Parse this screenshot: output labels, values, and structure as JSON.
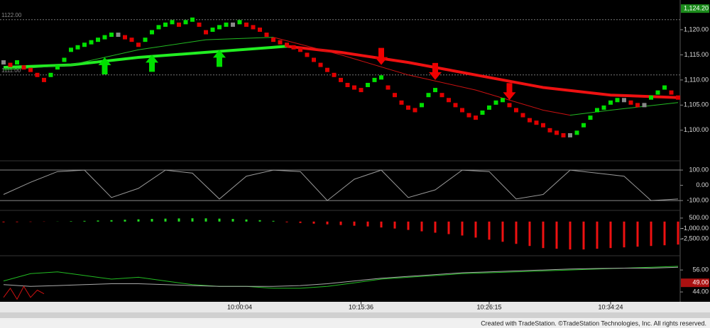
{
  "chart_data": {
    "type": "multi-panel",
    "xlim": [
      0,
      100
    ],
    "xticks": [
      {
        "value": 35,
        "label": "10:00:04"
      },
      {
        "value": 53,
        "label": "10:15:36"
      },
      {
        "value": 72,
        "label": "10:26:15"
      },
      {
        "value": 90,
        "label": "10:34:24"
      }
    ],
    "panels": [
      {
        "type": "renko",
        "ylim": [
          1094.2,
          1124.5
        ],
        "yticks": [
          {
            "value": 1100,
            "label": "1,100.00"
          },
          {
            "value": 1105,
            "label": "1,105.00"
          },
          {
            "value": 1110,
            "label": "1,110.00"
          },
          {
            "value": 1115,
            "label": "1,115.00"
          },
          {
            "value": 1120,
            "label": "1,120.00"
          }
        ],
        "ref_lines": [
          {
            "value": 1122,
            "label": "1122.00"
          },
          {
            "value": 1111,
            "label": "1111.00"
          }
        ],
        "value_boxes": [
          {
            "value": 1124.2,
            "label": "1,124.20",
            "color": "#1a8a1a"
          }
        ],
        "up_color": "#00e000",
        "down_color": "#e00000",
        "flat_color": "#888888",
        "x": [
          0,
          1,
          2,
          3,
          4,
          5,
          6,
          7,
          8,
          9,
          10,
          11,
          12,
          13,
          14,
          15,
          16,
          17,
          18,
          19,
          20,
          21,
          22,
          23,
          24,
          25,
          26,
          27,
          28,
          29,
          30,
          31,
          32,
          33,
          34,
          35,
          36,
          37,
          38,
          39,
          40,
          41,
          42,
          43,
          44,
          45,
          46,
          47,
          48,
          49,
          50,
          51,
          52,
          53,
          54,
          55,
          56,
          57,
          58,
          59,
          60,
          61,
          62,
          63,
          64,
          65,
          66,
          67,
          68,
          69,
          70,
          71,
          72,
          73,
          74,
          75,
          76,
          77,
          78,
          79,
          80,
          81,
          82,
          83,
          84,
          85,
          86,
          87,
          88,
          89,
          90,
          91,
          92,
          93,
          94,
          95,
          96,
          97,
          98,
          99,
          100
        ],
        "values": [
          1113.5,
          1113,
          1113.5,
          1112.5,
          1112,
          1111,
          1110,
          1111,
          1112.5,
          1114,
          1116,
          1116.5,
          1117,
          1117.5,
          1118,
          1118.5,
          1119,
          1119,
          1118.5,
          1118,
          1117,
          1118,
          1119.5,
          1120.5,
          1121,
          1121.5,
          1121,
          1121.5,
          1122,
          1121,
          1119.5,
          1120,
          1120.5,
          1121,
          1121,
          1121.5,
          1121,
          1120.5,
          1120,
          1119,
          1118,
          1117.5,
          1117,
          1116.5,
          1116,
          1115,
          1114,
          1113,
          1112,
          1111,
          1110,
          1109,
          1108.5,
          1108,
          1109,
          1110,
          1110.5,
          1108.5,
          1107,
          1105.5,
          1104.5,
          1104,
          1105,
          1107,
          1108,
          1107,
          1106,
          1105,
          1104,
          1103,
          1102.5,
          1103.5,
          1104.5,
          1105.5,
          1106,
          1105,
          1104,
          1103,
          1102,
          1101.5,
          1101,
          1100,
          1099.5,
          1099,
          1099,
          1099.5,
          1101,
          1102.5,
          1104,
          1104.5,
          1105.5,
          1106,
          1106,
          1105.5,
          1105,
          1105,
          1106.5,
          1107.5,
          1108.5,
          1107.5,
          1106.5
        ],
        "lines": [
          {
            "color": "#22ee22",
            "width": 4,
            "x": [
              0,
              10,
              20,
              30,
              40,
              42
            ],
            "values": [
              1112.5,
              1113,
              1114.5,
              1115.5,
              1116.5,
              1116.7
            ]
          },
          {
            "color": "#ee1111",
            "width": 4,
            "x": [
              42,
              50,
              60,
              70,
              80,
              90,
              100
            ],
            "values": [
              1116.7,
              1115.5,
              1113.5,
              1111,
              1108.5,
              1107,
              1106.5
            ]
          },
          {
            "color": "#22bb22",
            "width": 1,
            "x": [
              0,
              10,
              20,
              30,
              40
            ],
            "values": [
              1112,
              1113,
              1116,
              1118,
              1118.5
            ]
          },
          {
            "color": "#cc1111",
            "width": 1,
            "x": [
              40,
              50,
              60,
              70,
              80,
              84
            ],
            "values": [
              1118.5,
              1115,
              1111,
              1108,
              1104,
              1103
            ]
          },
          {
            "color": "#22bb22",
            "width": 1,
            "x": [
              84,
              90,
              100
            ],
            "values": [
              1103,
              1104,
              1105.5
            ]
          }
        ],
        "signals": [
          {
            "x": 15,
            "value": 1114.5,
            "direction": "up",
            "color": "#00e000"
          },
          {
            "x": 22,
            "value": 1115,
            "direction": "up",
            "color": "#00e000"
          },
          {
            "x": 32,
            "value": 1116,
            "direction": "up",
            "color": "#00e000"
          },
          {
            "x": 56,
            "value": 1113,
            "direction": "down",
            "color": "#ee0000"
          },
          {
            "x": 64,
            "value": 1110,
            "direction": "down",
            "color": "#ee0000"
          },
          {
            "x": 75,
            "value": 1106,
            "direction": "down",
            "color": "#ee0000"
          }
        ]
      },
      {
        "type": "line",
        "ylim": [
          -160,
          156
        ],
        "yticks": [
          {
            "value": 100,
            "label": "100.00"
          },
          {
            "value": 0,
            "label": "0.00"
          },
          {
            "value": -100,
            "label": "-100.00"
          }
        ],
        "ref_values": [
          100,
          -100
        ],
        "series": [
          {
            "color": "#9a9a9a",
            "x": [
              0,
              4,
              8,
              12,
              16,
              20,
              24,
              28,
              32,
              36,
              40,
              44,
              48,
              52,
              56,
              60,
              64,
              68,
              72,
              76,
              80,
              84,
              88,
              92,
              96,
              100
            ],
            "values": [
              -60,
              20,
              90,
              100,
              -80,
              -20,
              100,
              80,
              -90,
              60,
              100,
              90,
              -100,
              40,
              100,
              -80,
              -30,
              100,
              90,
              -90,
              -60,
              100,
              80,
              60,
              -100,
              -90
            ]
          }
        ]
      },
      {
        "type": "bar",
        "ylim": [
          -4800,
          1500
        ],
        "yticks": [
          {
            "value": 500,
            "label": "500.00"
          },
          {
            "value": -1000,
            "label": "-1,000.00"
          },
          {
            "value": -2500,
            "label": "-2,500.00"
          }
        ],
        "up_color": "#22dd22",
        "down_color": "#ee1111",
        "x": [
          0,
          2,
          4,
          6,
          8,
          10,
          12,
          14,
          16,
          18,
          20,
          22,
          24,
          26,
          28,
          30,
          32,
          34,
          36,
          38,
          40,
          42,
          44,
          46,
          48,
          50,
          52,
          54,
          56,
          58,
          60,
          62,
          64,
          66,
          68,
          70,
          72,
          74,
          76,
          78,
          80,
          82,
          84,
          86,
          88,
          90,
          92,
          94,
          96,
          98,
          100
        ],
        "values": [
          -100,
          -80,
          -50,
          -30,
          20,
          60,
          100,
          150,
          200,
          260,
          320,
          380,
          420,
          450,
          470,
          460,
          420,
          380,
          300,
          200,
          100,
          -100,
          -200,
          -300,
          -400,
          -500,
          -600,
          -700,
          -850,
          -1000,
          -1200,
          -1400,
          -1600,
          -1800,
          -2000,
          -2300,
          -2600,
          -2900,
          -3200,
          -3500,
          -3800,
          -3900,
          -4000,
          -4000,
          -3900,
          -3800,
          -3700,
          -3600,
          -3500,
          -3400,
          -3300
        ]
      },
      {
        "type": "line",
        "ylim": [
          39,
          63.4
        ],
        "yticks": [
          {
            "value": 56,
            "label": "56.00"
          },
          {
            "value": 44,
            "label": "44.00"
          }
        ],
        "value_boxes": [
          {
            "value": 49,
            "label": "49.00",
            "color": "#aa1111"
          }
        ],
        "series": [
          {
            "color": "#22bb22",
            "x": [
              0,
              4,
              8,
              12,
              16,
              20,
              24,
              28,
              32,
              36,
              40,
              44,
              48,
              52,
              56,
              60,
              64,
              68,
              72,
              76,
              80,
              84,
              88,
              92,
              96,
              100
            ],
            "values": [
              50,
              54,
              55,
              53,
              51,
              52,
              50,
              48,
              47,
              47,
              46,
              46,
              47,
              49,
              51,
              52,
              53,
              54,
              54.5,
              55,
              55.5,
              56,
              56.5,
              57,
              57.5,
              58
            ]
          },
          {
            "color": "#aaaaaa",
            "x": [
              0,
              4,
              8,
              12,
              16,
              20,
              24,
              28,
              32,
              36,
              40,
              44,
              48,
              52,
              56,
              60,
              64,
              68,
              72,
              76,
              80,
              84,
              88,
              92,
              96,
              100
            ],
            "values": [
              48,
              47,
              47.5,
              48,
              48.5,
              48.5,
              48,
              47.5,
              47,
              47,
              47,
              47.5,
              48.5,
              50,
              51.5,
              52.5,
              53.5,
              54.5,
              55,
              55.5,
              56,
              56.5,
              56.8,
              57,
              57,
              57.5
            ]
          },
          {
            "color": "#cc1111",
            "x": [
              0,
              1,
              2,
              3,
              4,
              5,
              6
            ],
            "values": [
              41,
              46,
              40,
              47,
              41,
              45,
              43
            ]
          }
        ]
      }
    ]
  },
  "footer": "Created with TradeStation. ©TradeStation Technologies, Inc. All rights reserved."
}
